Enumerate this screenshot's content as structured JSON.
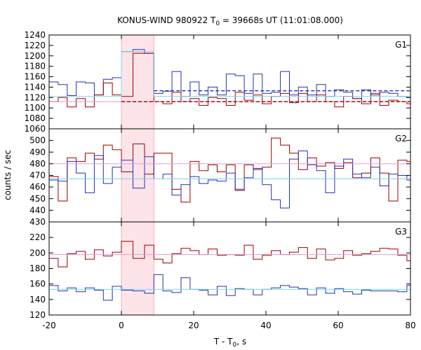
{
  "title": {
    "prefix": "KONUS-WIND 980922 T",
    "sub": "0",
    "suffix": " = 39668s UT (11:01:08.000)"
  },
  "xlabel": {
    "prefix": "T - T",
    "sub": "0",
    "suffix": ", s"
  },
  "ylabel": "counts / sec",
  "colors": {
    "red": "#9b0000",
    "blue": "#2233aa",
    "cyan": "#7fd4ee",
    "pink": "#e89ad6",
    "shade": "#fde4e8",
    "shade_edge": "#f0a0a8"
  },
  "chart_data": [
    {
      "type": "line",
      "panel": "G1",
      "xlim": [
        -20,
        80
      ],
      "ylim": [
        1060,
        1240
      ],
      "yticks": [
        1060,
        1080,
        1100,
        1120,
        1140,
        1160,
        1180,
        1200,
        1220,
        1240
      ],
      "shaded_interval": [
        0,
        9
      ],
      "series": [
        {
          "color_key": "blue",
          "step": true,
          "x": [
            -20,
            -17.5,
            -15,
            -12.5,
            -10,
            -7.5,
            -5,
            -2.5,
            0,
            3.2,
            6.4,
            9,
            11.5,
            14,
            16.5,
            19,
            21.5,
            24,
            26.5,
            29,
            31.5,
            34,
            36.5,
            39,
            41.5,
            44,
            46.5,
            49,
            51.5,
            54,
            56.5,
            59,
            61.5,
            64,
            66.5,
            69,
            71.5,
            74,
            76.5,
            79,
            80
          ],
          "values": [
            1150,
            1145,
            1124,
            1150,
            1148,
            1125,
            1155,
            1158,
            1208,
            1212,
            1205,
            1128,
            1132,
            1170,
            1122,
            1150,
            1125,
            1140,
            1125,
            1165,
            1162,
            1128,
            1165,
            1128,
            1130,
            1170,
            1125,
            1140,
            1125,
            1145,
            1122,
            1135,
            1130,
            1118,
            1135,
            1125,
            1130,
            1128,
            1122,
            1120,
            1120
          ]
        },
        {
          "color_key": "red",
          "step": true,
          "x": [
            -20,
            -17.5,
            -15,
            -12.5,
            -10,
            -7.5,
            -5,
            -2.5,
            0,
            3.2,
            6.4,
            9,
            11.5,
            14,
            16.5,
            19,
            21.5,
            24,
            26.5,
            29,
            31.5,
            34,
            36.5,
            39,
            41.5,
            44,
            46.5,
            49,
            51.5,
            54,
            56.5,
            59,
            61.5,
            64,
            66.5,
            69,
            71.5,
            74,
            76.5,
            79,
            80
          ],
          "values": [
            1112,
            1120,
            1102,
            1118,
            1102,
            1125,
            1148,
            1125,
            1122,
            1205,
            1205,
            1112,
            1108,
            1130,
            1112,
            1118,
            1105,
            1120,
            1118,
            1105,
            1130,
            1115,
            1125,
            1108,
            1122,
            1128,
            1110,
            1128,
            1112,
            1125,
            1112,
            1102,
            1122,
            1118,
            1108,
            1128,
            1105,
            1115,
            1112,
            1108,
            1108
          ]
        },
        {
          "color_key": "cyan",
          "step": true,
          "x": [
            -20,
            0,
            9,
            80
          ],
          "values": [
            1122,
            1208,
            1122,
            1122
          ]
        },
        {
          "color_key": "pink",
          "x": [
            -20,
            80
          ],
          "values": [
            1112,
            1112
          ]
        },
        {
          "color_key": "blue",
          "dashed": true,
          "x": [
            9,
            80
          ],
          "values": [
            1133,
            1133
          ]
        },
        {
          "color_key": "red",
          "dashed": true,
          "x": [
            0,
            80
          ],
          "values": [
            1112,
            1112
          ]
        }
      ]
    },
    {
      "type": "line",
      "panel": "G2",
      "xlim": [
        -20,
        80
      ],
      "ylim": [
        430,
        510
      ],
      "yticks": [
        430,
        440,
        450,
        460,
        470,
        480,
        490,
        500
      ],
      "shaded_interval": [
        0,
        9
      ],
      "series": [
        {
          "color_key": "red",
          "step": true,
          "x": [
            -20,
            -17.5,
            -15,
            -12.5,
            -10,
            -7.5,
            -5,
            -2.5,
            0,
            3.2,
            6.4,
            9,
            11.5,
            14,
            16.5,
            19,
            21.5,
            24,
            26.5,
            29,
            31.5,
            34,
            36.5,
            39,
            41.5,
            44,
            46.5,
            49,
            51.5,
            54,
            56.5,
            59,
            61.5,
            64,
            66.5,
            69,
            71.5,
            74,
            76.5,
            79,
            80
          ],
          "values": [
            469,
            448,
            485,
            482,
            489,
            484,
            496,
            492,
            473,
            497,
            471,
            489,
            489,
            458,
            447,
            482,
            474,
            479,
            473,
            479,
            457,
            479,
            475,
            477,
            502,
            496,
            489,
            475,
            485,
            478,
            481,
            476,
            481,
            468,
            472,
            485,
            472,
            448,
            483,
            482,
            482
          ]
        },
        {
          "color_key": "blue",
          "step": true,
          "x": [
            -20,
            -17.5,
            -15,
            -12.5,
            -10,
            -7.5,
            -5,
            -2.5,
            0,
            3.2,
            6.4,
            9,
            11.5,
            14,
            16.5,
            19,
            21.5,
            24,
            26.5,
            29,
            31.5,
            34,
            36.5,
            39,
            41.5,
            44,
            46.5,
            49,
            51.5,
            54,
            56.5,
            59,
            61.5,
            64,
            66.5,
            69,
            71.5,
            74,
            76.5,
            79,
            80
          ],
          "values": [
            466,
            465,
            482,
            472,
            455,
            487,
            463,
            477,
            483,
            459,
            486,
            467,
            471,
            453,
            462,
            469,
            463,
            466,
            465,
            472,
            458,
            468,
            476,
            462,
            449,
            442,
            484,
            491,
            479,
            474,
            455,
            478,
            484,
            471,
            468,
            477,
            461,
            471,
            470,
            466,
            466
          ]
        },
        {
          "color_key": "pink",
          "x": [
            -20,
            80
          ],
          "values": [
            480,
            480
          ]
        },
        {
          "color_key": "cyan",
          "x": [
            -20,
            80
          ],
          "values": [
            467,
            467
          ]
        }
      ]
    },
    {
      "type": "line",
      "panel": "G3",
      "xlim": [
        -20,
        80
      ],
      "ylim": [
        120,
        240
      ],
      "yticks": [
        120,
        140,
        160,
        180,
        200,
        220
      ],
      "shaded_interval": [
        0,
        9
      ],
      "series": [
        {
          "color_key": "red",
          "step": true,
          "x": [
            -20,
            -17.5,
            -15,
            -12.5,
            -10,
            -7.5,
            -5,
            -2.5,
            0,
            3.2,
            6.4,
            9,
            11.5,
            14,
            16.5,
            19,
            21.5,
            24,
            26.5,
            29,
            31.5,
            34,
            36.5,
            39,
            41.5,
            44,
            46.5,
            49,
            51.5,
            54,
            56.5,
            59,
            61.5,
            64,
            66.5,
            69,
            71.5,
            74,
            76.5,
            79,
            80
          ],
          "values": [
            193,
            182,
            199,
            202,
            192,
            204,
            196,
            201,
            215,
            193,
            210,
            192,
            187,
            199,
            206,
            203,
            198,
            205,
            197,
            198,
            197,
            210,
            192,
            197,
            203,
            198,
            201,
            207,
            193,
            205,
            191,
            193,
            203,
            197,
            199,
            202,
            206,
            205,
            197,
            190,
            190
          ]
        },
        {
          "color_key": "blue",
          "step": true,
          "x": [
            -20,
            -17.5,
            -15,
            -12.5,
            -10,
            -7.5,
            -5,
            -2.5,
            0,
            3.2,
            6.4,
            9,
            11.5,
            14,
            16.5,
            19,
            21.5,
            24,
            26.5,
            29,
            31.5,
            34,
            36.5,
            39,
            41.5,
            44,
            46.5,
            49,
            51.5,
            54,
            56.5,
            59,
            61.5,
            64,
            66.5,
            69,
            71.5,
            74,
            76.5,
            79,
            80
          ],
          "values": [
            158,
            151,
            155,
            150,
            155,
            152,
            139,
            157,
            152,
            151,
            148,
            172,
            151,
            149,
            168,
            153,
            152,
            146,
            157,
            145,
            154,
            153,
            146,
            153,
            155,
            158,
            156,
            154,
            146,
            155,
            148,
            154,
            150,
            147,
            152,
            151,
            151,
            151,
            150,
            158,
            158
          ]
        },
        {
          "color_key": "pink",
          "x": [
            -20,
            80
          ],
          "values": [
            198,
            198
          ]
        },
        {
          "color_key": "cyan",
          "x": [
            -20,
            80
          ],
          "values": [
            153,
            153
          ]
        }
      ]
    }
  ],
  "xticks": [
    -20,
    0,
    20,
    40,
    60,
    80
  ]
}
